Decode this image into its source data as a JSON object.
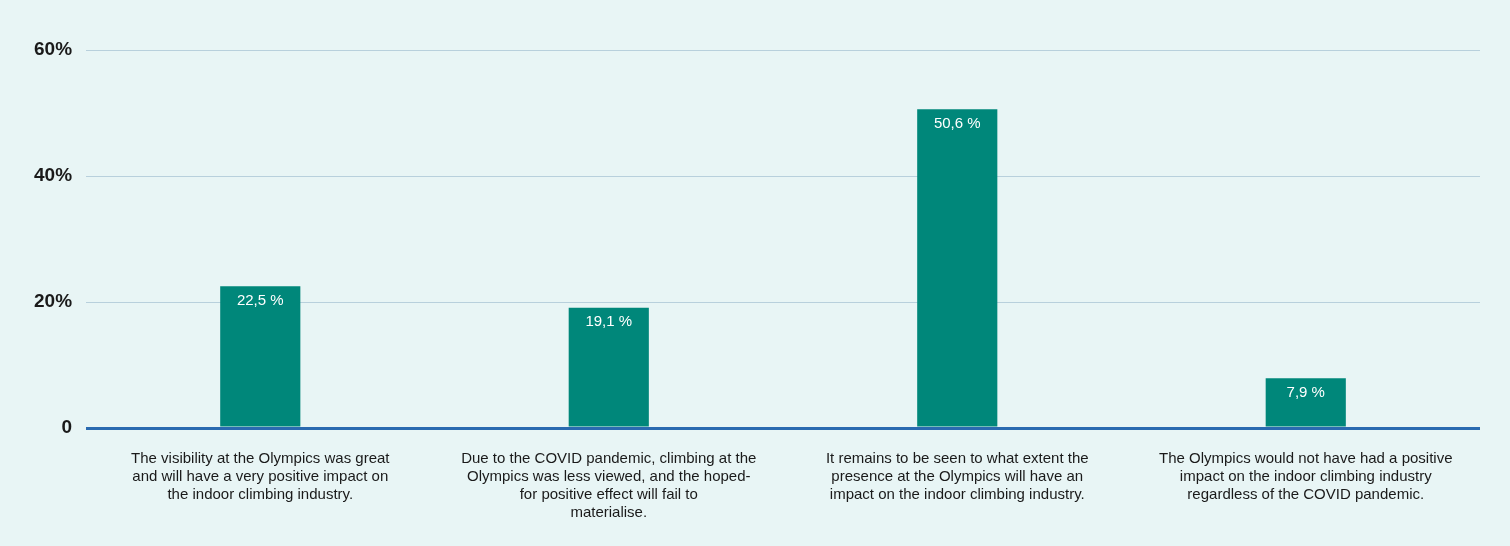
{
  "chart_data": {
    "type": "bar",
    "categories": [
      "The visibility at the Olympics was great and will have a very positive impact on the indoor climbing industry.",
      "Due to the COVID pandemic, climbing at the Olympics was less viewed, and the hoped-for positive effect will fail to materialise.",
      "It remains to be seen to what extent the presence at the Olympics will have an impact on the indoor climbing industry.",
      "The Olympics would not have had a positive impact on the indoor climbing industry regardless of the COVID pandemic."
    ],
    "values": [
      22.5,
      19.1,
      50.6,
      7.9
    ],
    "value_labels": [
      "22,5 %",
      "19,1 %",
      "50,6 %",
      "7,9 %"
    ],
    "color": "#00877a",
    "ylim": [
      0,
      60
    ],
    "yticks": [
      {
        "value": 0,
        "label": "0"
      },
      {
        "value": 20,
        "label": "20%"
      },
      {
        "value": 40,
        "label": "40%"
      },
      {
        "value": 60,
        "label": "60%"
      }
    ],
    "grid": "y"
  }
}
